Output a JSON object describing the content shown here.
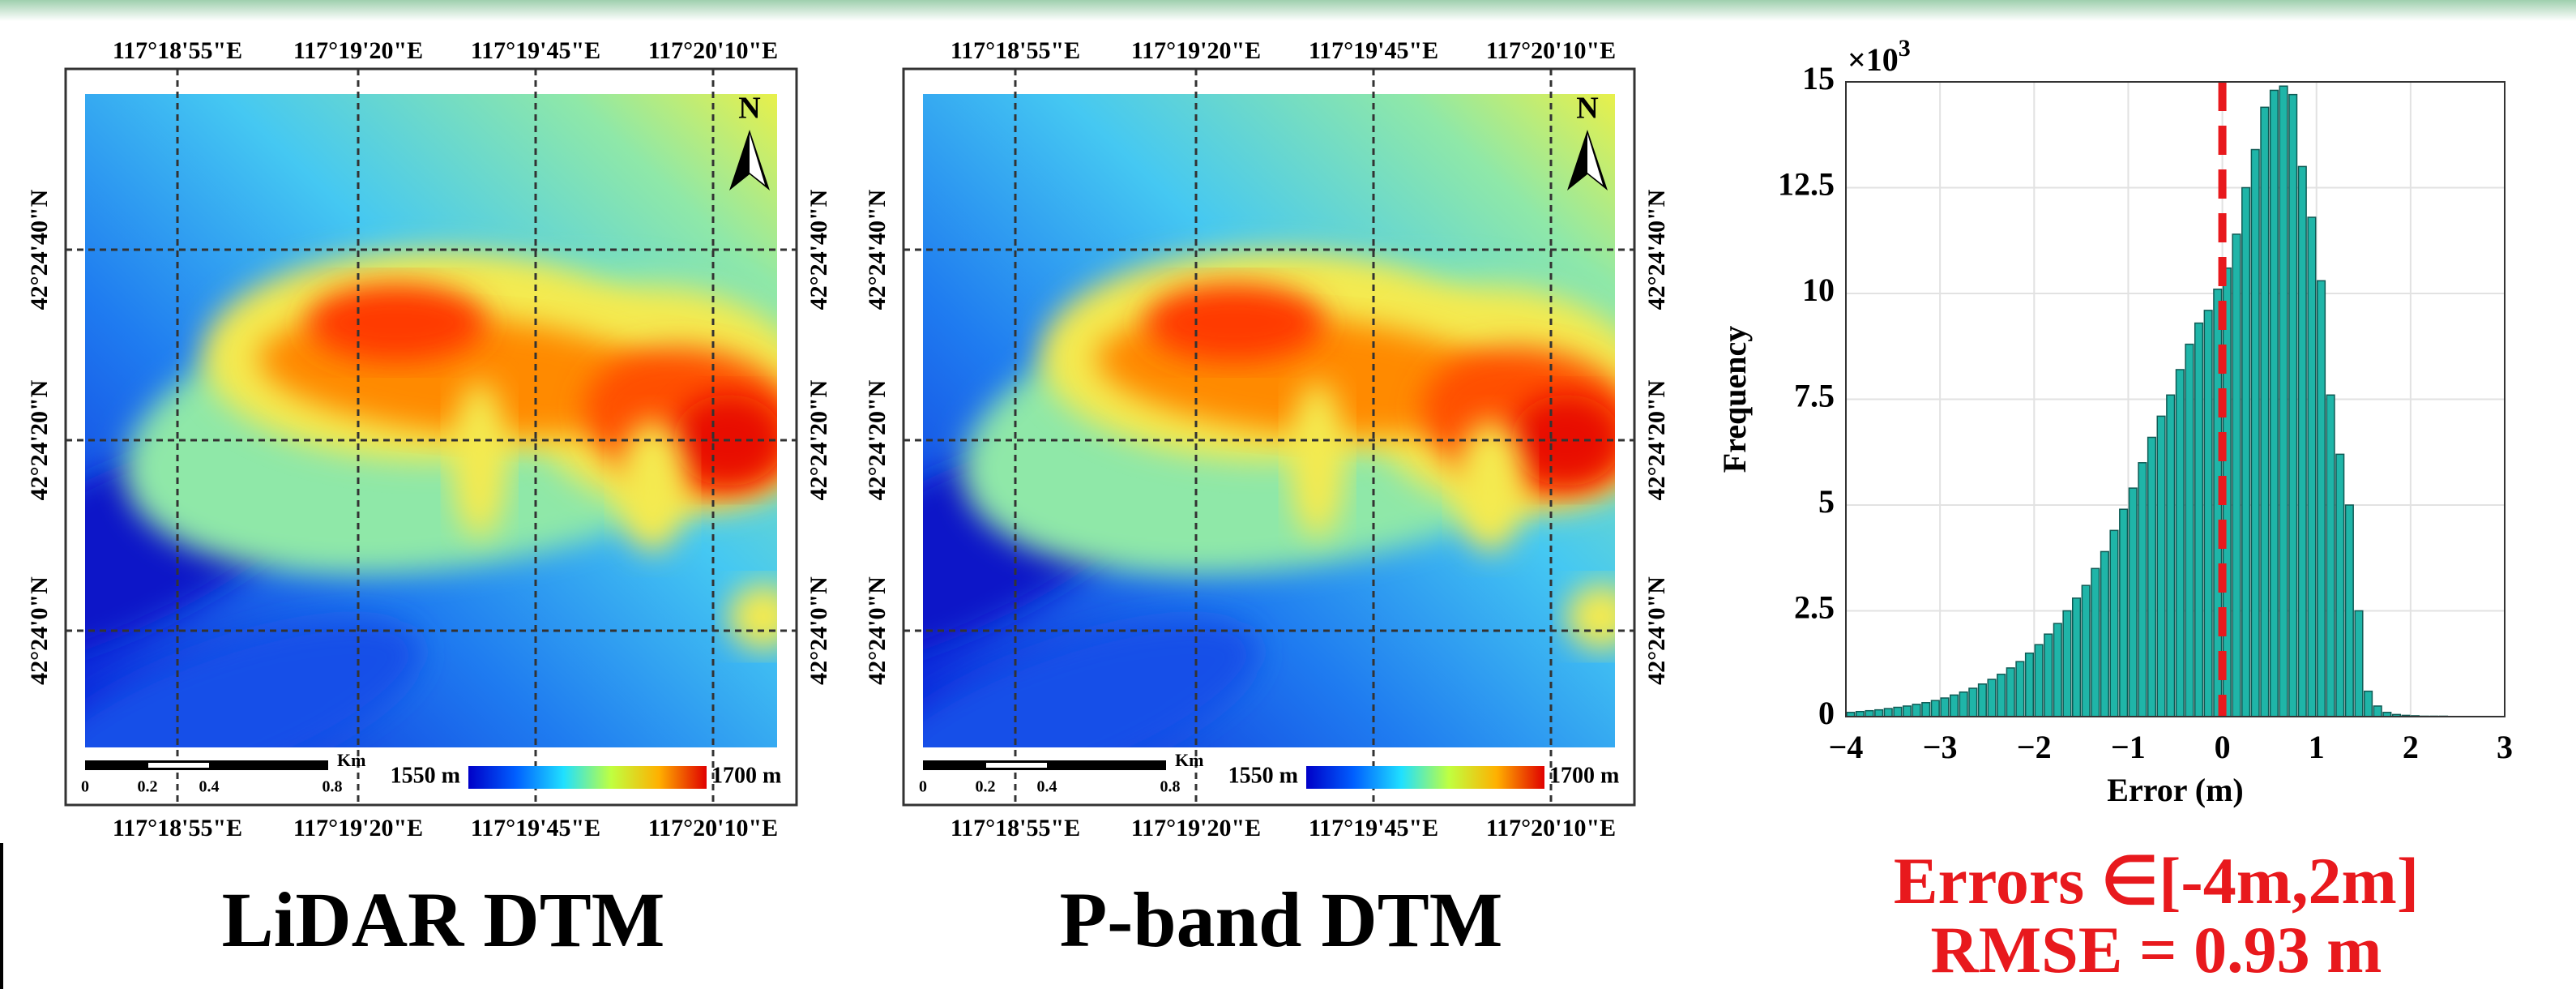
{
  "maps": [
    {
      "caption": "LiDAR DTM"
    },
    {
      "caption": "P-band  DTM"
    }
  ],
  "map_labels": {
    "longitudes": [
      "117°18'55\"E",
      "117°19'20\"E",
      "117°19'45\"E",
      "117°20'10\"E"
    ],
    "latitudes": [
      "42°24'40\"N",
      "42°24'20\"N",
      "42°24'0\"N"
    ],
    "north": "N",
    "scale_labels": [
      "0",
      "0.2",
      "0.4",
      "0.8"
    ],
    "scale_unit": "Km",
    "colorbar_min": "1550 m",
    "colorbar_max": "1700 m"
  },
  "chart_data": {
    "type": "histogram",
    "x_label": "Error (m)",
    "y_label": "Frequency",
    "y_exponent": {
      "base": "×10",
      "power": "3"
    },
    "bins": [
      -4.0,
      -3.9,
      -3.8,
      -3.7,
      -3.6,
      -3.5,
      -3.4,
      -3.3,
      -3.2,
      -3.1,
      -3.0,
      -2.9,
      -2.8,
      -2.7,
      -2.6,
      -2.5,
      -2.4,
      -2.3,
      -2.2,
      -2.1,
      -2.0,
      -1.9,
      -1.8,
      -1.7,
      -1.6,
      -1.5,
      -1.4,
      -1.3,
      -1.2,
      -1.1,
      -1.0,
      -0.9,
      -0.8,
      -0.7,
      -0.6,
      -0.5,
      -0.4,
      -0.3,
      -0.2,
      -0.1,
      0.0,
      0.1,
      0.2,
      0.3,
      0.4,
      0.5,
      0.6,
      0.7,
      0.8,
      0.9,
      1.0,
      1.1,
      1.2,
      1.3,
      1.4,
      1.5,
      1.6,
      1.7,
      1.8,
      1.9,
      2.0,
      2.1,
      2.2,
      2.3,
      2.4
    ],
    "values": [
      0.1,
      0.12,
      0.14,
      0.16,
      0.19,
      0.22,
      0.25,
      0.29,
      0.33,
      0.38,
      0.44,
      0.51,
      0.58,
      0.67,
      0.77,
      0.88,
      1.0,
      1.15,
      1.3,
      1.5,
      1.7,
      1.95,
      2.2,
      2.5,
      2.8,
      3.1,
      3.5,
      3.9,
      4.4,
      4.9,
      5.4,
      6.0,
      6.6,
      7.1,
      7.6,
      8.2,
      8.8,
      9.3,
      9.6,
      10.1,
      10.6,
      11.4,
      12.5,
      13.4,
      14.4,
      14.8,
      14.9,
      14.7,
      13.0,
      11.8,
      10.3,
      7.6,
      6.2,
      5.0,
      2.5,
      0.6,
      0.25,
      0.1,
      0.05,
      0.03,
      0.02,
      0.01,
      0.01,
      0.01
    ],
    "color": "#1fb5a8",
    "xlim": [
      -4,
      3
    ],
    "xticks": [
      {
        "value": -4,
        "label": "−4"
      },
      {
        "value": -3,
        "label": "−3"
      },
      {
        "value": -2,
        "label": "−2"
      },
      {
        "value": -1,
        "label": "−1"
      },
      0,
      1,
      2,
      3
    ],
    "ylim": [
      0,
      15
    ],
    "yticks": [
      0,
      2.5,
      5,
      7.5,
      10,
      12.5,
      15
    ],
    "grid": true,
    "reference_line": {
      "value": 0,
      "color": "#e8191d"
    }
  },
  "annotations": [
    "Errors ∈[-4m,2m]",
    "RMSE = 0.93 m"
  ]
}
